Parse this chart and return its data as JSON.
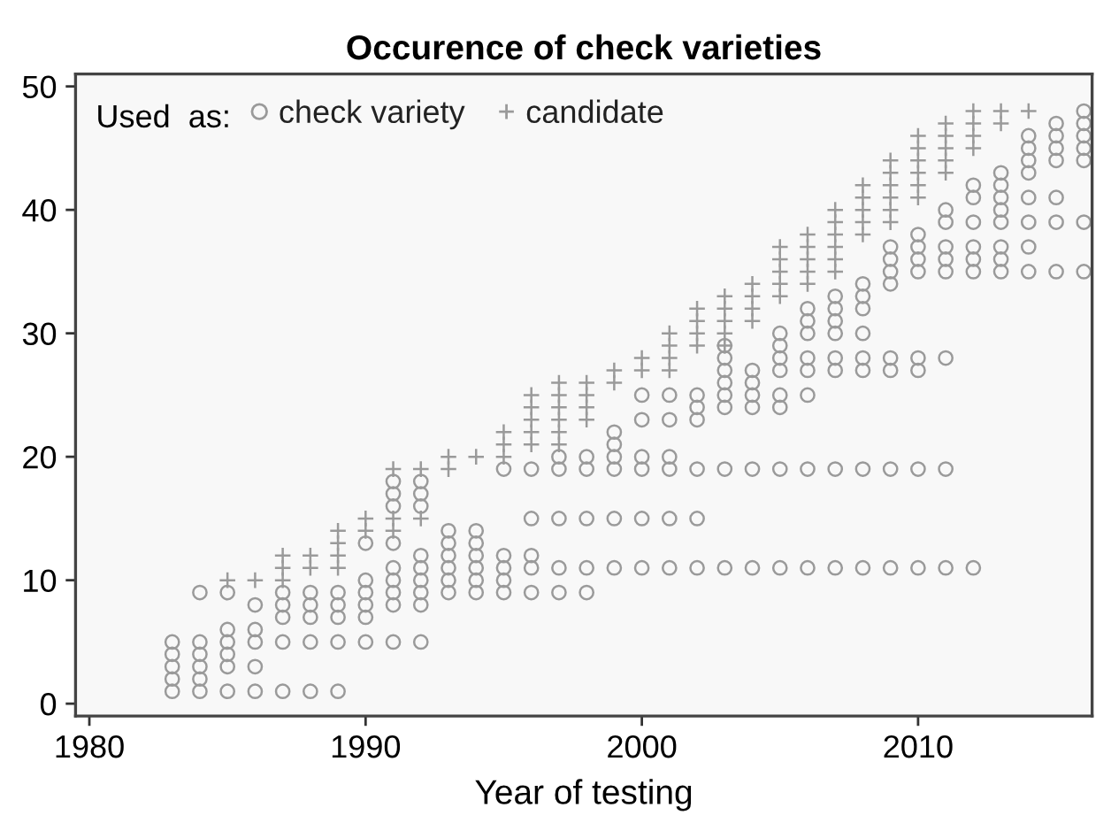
{
  "chart_data": {
    "type": "scatter",
    "title": "Occurence of check varieties",
    "xlabel": "Year of testing",
    "legend_title": "Used  as:",
    "xlim": [
      1979.5,
      2016.3
    ],
    "ylim": [
      -1,
      51
    ],
    "xticks": [
      1980,
      1990,
      2000,
      2010
    ],
    "yticks": [
      0,
      10,
      20,
      30,
      40,
      50
    ],
    "grid": false,
    "legend": "top left",
    "series": [
      {
        "name": "check variety",
        "color": "#9a9a9a",
        "marker": "circle",
        "x": [
          1983,
          1983,
          1983,
          1983,
          1983,
          1984,
          1984,
          1984,
          1984,
          1984,
          1984,
          1985,
          1985,
          1985,
          1985,
          1985,
          1985,
          1986,
          1986,
          1986,
          1986,
          1986,
          1987,
          1987,
          1987,
          1987,
          1987,
          1988,
          1988,
          1988,
          1988,
          1988,
          1989,
          1989,
          1989,
          1989,
          1989,
          1990,
          1990,
          1990,
          1990,
          1990,
          1990,
          1991,
          1991,
          1991,
          1991,
          1991,
          1991,
          1991,
          1991,
          1991,
          1992,
          1992,
          1992,
          1992,
          1992,
          1992,
          1992,
          1992,
          1992,
          1993,
          1993,
          1993,
          1993,
          1993,
          1993,
          1994,
          1994,
          1994,
          1994,
          1994,
          1994,
          1995,
          1995,
          1995,
          1995,
          1995,
          1996,
          1996,
          1996,
          1996,
          1996,
          1997,
          1997,
          1997,
          1997,
          1997,
          1998,
          1998,
          1998,
          1998,
          1998,
          1999,
          1999,
          1999,
          1999,
          1999,
          1999,
          2000,
          2000,
          2000,
          2000,
          2000,
          2000,
          2001,
          2001,
          2001,
          2001,
          2001,
          2001,
          2002,
          2002,
          2002,
          2002,
          2002,
          2002,
          2003,
          2003,
          2003,
          2003,
          2003,
          2003,
          2003,
          2003,
          2004,
          2004,
          2004,
          2004,
          2004,
          2004,
          2005,
          2005,
          2005,
          2005,
          2005,
          2005,
          2005,
          2005,
          2006,
          2006,
          2006,
          2006,
          2006,
          2006,
          2006,
          2006,
          2007,
          2007,
          2007,
          2007,
          2007,
          2007,
          2007,
          2007,
          2008,
          2008,
          2008,
          2008,
          2008,
          2008,
          2008,
          2008,
          2009,
          2009,
          2009,
          2009,
          2009,
          2009,
          2009,
          2009,
          2010,
          2010,
          2010,
          2010,
          2010,
          2010,
          2010,
          2010,
          2011,
          2011,
          2011,
          2011,
          2011,
          2011,
          2011,
          2011,
          2012,
          2012,
          2012,
          2012,
          2012,
          2012,
          2012,
          2013,
          2013,
          2013,
          2013,
          2013,
          2013,
          2013,
          2013,
          2014,
          2014,
          2014,
          2014,
          2014,
          2014,
          2014,
          2014,
          2015,
          2015,
          2015,
          2015,
          2015,
          2015,
          2015,
          2016,
          2016,
          2016,
          2016,
          2016,
          2016,
          2016
        ],
        "values": [
          1,
          2,
          3,
          4,
          5,
          1,
          2,
          3,
          4,
          5,
          9,
          1,
          3,
          4,
          5,
          6,
          9,
          1,
          3,
          5,
          6,
          8,
          1,
          5,
          7,
          8,
          9,
          1,
          5,
          7,
          8,
          9,
          1,
          5,
          7,
          8,
          9,
          5,
          7,
          8,
          9,
          10,
          13,
          5,
          8,
          9,
          10,
          11,
          13,
          16,
          17,
          18,
          5,
          8,
          9,
          10,
          11,
          12,
          16,
          17,
          18,
          9,
          10,
          11,
          12,
          13,
          14,
          9,
          10,
          11,
          12,
          13,
          14,
          9,
          10,
          11,
          12,
          19,
          9,
          11,
          12,
          15,
          19,
          9,
          11,
          15,
          19,
          20,
          9,
          11,
          15,
          19,
          20,
          11,
          15,
          19,
          20,
          21,
          22,
          11,
          15,
          19,
          20,
          23,
          25,
          11,
          15,
          19,
          20,
          23,
          25,
          11,
          15,
          19,
          23,
          24,
          25,
          11,
          19,
          24,
          25,
          26,
          27,
          28,
          29,
          11,
          19,
          24,
          25,
          26,
          27,
          11,
          19,
          24,
          25,
          27,
          28,
          29,
          30,
          11,
          19,
          25,
          27,
          28,
          30,
          31,
          32,
          11,
          19,
          27,
          28,
          30,
          31,
          32,
          33,
          11,
          19,
          27,
          28,
          30,
          32,
          33,
          34,
          11,
          19,
          27,
          28,
          34,
          35,
          36,
          37,
          11,
          19,
          27,
          28,
          35,
          36,
          37,
          38,
          11,
          19,
          28,
          35,
          36,
          37,
          39,
          40,
          11,
          35,
          36,
          37,
          39,
          41,
          42,
          35,
          36,
          37,
          39,
          40,
          41,
          42,
          43,
          35,
          37,
          39,
          41,
          43,
          44,
          45,
          46,
          35,
          39,
          41,
          44,
          45,
          46,
          47,
          35,
          39,
          44,
          45,
          46,
          47,
          48
        ]
      },
      {
        "name": "candidate",
        "color": "#9a9a9a",
        "marker": "cross",
        "x": [
          1985,
          1986,
          1987,
          1987,
          1987,
          1988,
          1988,
          1989,
          1989,
          1989,
          1989,
          1990,
          1990,
          1991,
          1991,
          1991,
          1992,
          1992,
          1993,
          1993,
          1994,
          1995,
          1995,
          1995,
          1996,
          1996,
          1996,
          1996,
          1996,
          1997,
          1997,
          1997,
          1997,
          1997,
          1997,
          1998,
          1998,
          1998,
          1998,
          1999,
          1999,
          2000,
          2000,
          2001,
          2001,
          2001,
          2001,
          2002,
          2002,
          2002,
          2002,
          2003,
          2003,
          2003,
          2003,
          2003,
          2004,
          2004,
          2004,
          2004,
          2005,
          2005,
          2005,
          2005,
          2005,
          2006,
          2006,
          2006,
          2006,
          2006,
          2007,
          2007,
          2007,
          2007,
          2007,
          2007,
          2008,
          2008,
          2008,
          2008,
          2008,
          2009,
          2009,
          2009,
          2009,
          2009,
          2009,
          2010,
          2010,
          2010,
          2010,
          2010,
          2010,
          2011,
          2011,
          2011,
          2011,
          2011,
          2012,
          2012,
          2012,
          2012,
          2013,
          2013,
          2014
        ],
        "values": [
          10,
          10,
          10,
          11,
          12,
          11,
          12,
          11,
          12,
          13,
          14,
          14,
          15,
          14,
          15,
          19,
          15,
          19,
          19,
          20,
          20,
          20,
          21,
          22,
          21,
          22,
          23,
          24,
          25,
          21,
          22,
          23,
          24,
          25,
          26,
          23,
          24,
          25,
          26,
          26,
          27,
          27,
          28,
          27,
          28,
          29,
          30,
          29,
          30,
          31,
          32,
          29,
          30,
          31,
          32,
          33,
          31,
          32,
          33,
          34,
          33,
          34,
          35,
          36,
          37,
          34,
          35,
          36,
          37,
          38,
          35,
          36,
          37,
          38,
          39,
          40,
          38,
          39,
          40,
          41,
          42,
          39,
          40,
          41,
          42,
          43,
          44,
          41,
          42,
          43,
          44,
          45,
          46,
          43,
          44,
          45,
          46,
          47,
          45,
          46,
          47,
          48,
          47,
          48,
          48
        ]
      }
    ]
  }
}
